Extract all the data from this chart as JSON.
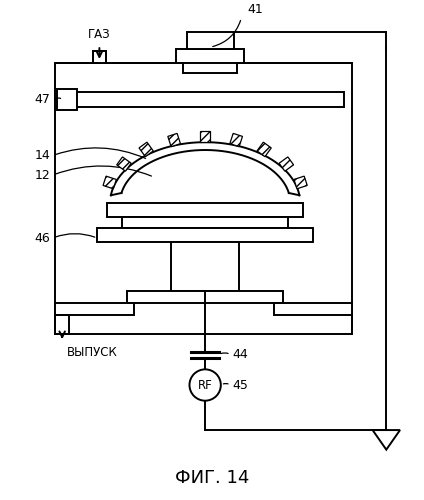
{
  "title": "ФИГ. 14",
  "labels": {
    "gas": "ГАЗ",
    "output": "ВЫПУСК",
    "rf": "RF",
    "num_41": "41",
    "num_44": "44",
    "num_45": "45",
    "num_46": "46",
    "num_47": "47",
    "num_12": "12",
    "num_14": "14"
  },
  "line_color": "#000000",
  "bg_color": "#ffffff"
}
